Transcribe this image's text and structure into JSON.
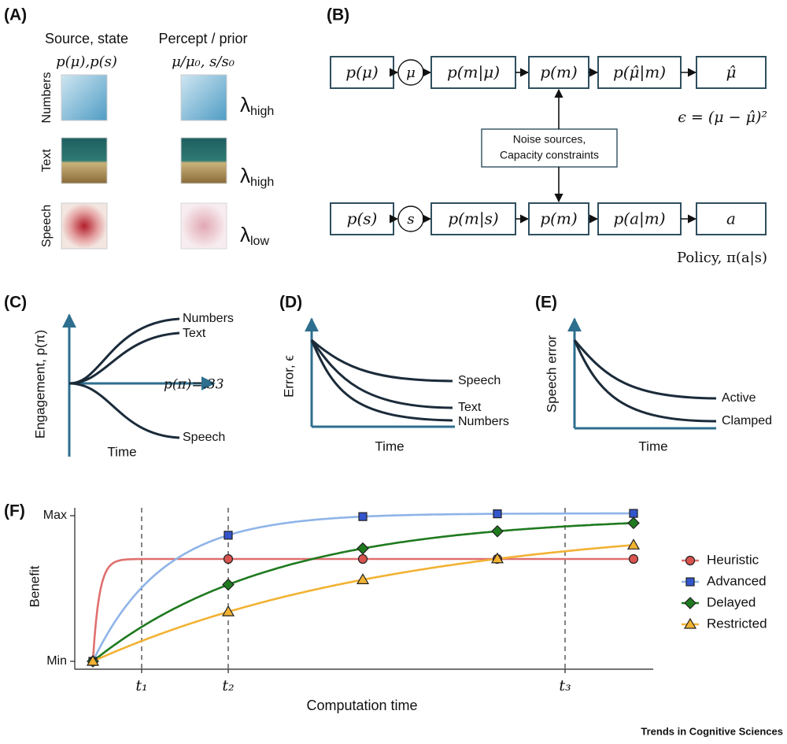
{
  "panel_a": {
    "label": "(A)",
    "columns": [
      {
        "title": "Source, state",
        "formula": "p(μ),p(s)"
      },
      {
        "title": "Percept / prior",
        "formula": "μ/μ₀, s/s₀"
      }
    ],
    "rows": [
      {
        "label": "Numbers",
        "lambda": "λ",
        "subscript": "high"
      },
      {
        "label": "Text",
        "lambda": "λ",
        "subscript": "high"
      },
      {
        "label": "Speech",
        "lambda": "λ",
        "subscript": "low"
      }
    ]
  },
  "panel_b": {
    "label": "(B)",
    "top_row": [
      "p(μ)",
      "μ",
      "p(m|μ)",
      "p(m)",
      "p(μ̂|m)",
      "μ̂"
    ],
    "bottom_row": [
      "p(s)",
      "s",
      "p(m|s)",
      "p(m)",
      "p(a|m)",
      "a"
    ],
    "noise_box": [
      "Noise sources,",
      "Capacity constraints"
    ],
    "error_equation": "ϵ = (μ − μ̂)²",
    "policy": "Policy, π(a|s)"
  },
  "panel_c": {
    "label": "(C)",
    "y_label": "Engagement, p(π)",
    "x_label": "Time",
    "curve_labels": [
      "Numbers",
      "Text",
      "p(π)=.33",
      "Speech"
    ]
  },
  "panel_d": {
    "label": "(D)",
    "y_label": "Error, ϵ",
    "x_label": "Time",
    "curve_labels": [
      "Speech",
      "Text",
      "Numbers"
    ]
  },
  "panel_e": {
    "label": "(E)",
    "y_label": "Speech error",
    "x_label": "Time",
    "curve_labels": [
      "Active",
      "Clamped"
    ]
  },
  "panel_f": {
    "label": "(F)",
    "y_label": "Benefit",
    "x_label": "Computation time",
    "y_ticks": [
      "Max",
      "Min"
    ],
    "time_marks": [
      "t₁",
      "t₂",
      "t₃"
    ],
    "legend": [
      {
        "name": "Heuristic",
        "color": "#e07070",
        "marker": "circle"
      },
      {
        "name": "Advanced",
        "color": "#8fb4e8",
        "marker": "square"
      },
      {
        "name": "Delayed",
        "color": "#1f7a1f",
        "marker": "diamond"
      },
      {
        "name": "Restricted",
        "color": "#f2b233",
        "marker": "triangle"
      }
    ]
  },
  "footer": "Trends in Cognitive Sciences"
}
